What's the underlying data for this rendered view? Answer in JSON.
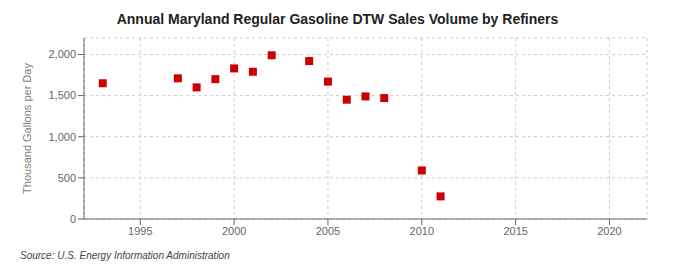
{
  "chart_data": {
    "type": "scatter",
    "title": "Annual Maryland Regular Gasoline DTW Sales Volume by Refiners",
    "ylabel": "Thousand Gallons per Day",
    "annotations": [
      "Source: U.S. Energy Information Administration"
    ],
    "x": [
      1993,
      1997,
      1998,
      1999,
      2000,
      2001,
      2002,
      2004,
      2005,
      2006,
      2007,
      2008,
      2010,
      2011
    ],
    "values": [
      1650,
      1710,
      1600,
      1700,
      1830,
      1790,
      1990,
      1920,
      1670,
      1450,
      1490,
      1470,
      590,
      275
    ],
    "color": "#cc0000",
    "marker": "square",
    "xlim": [
      1992,
      2022
    ],
    "ylim": [
      0,
      2200
    ],
    "xticks": [
      1995,
      2000,
      2005,
      2010,
      2015,
      2020
    ],
    "yticks": [
      0,
      500,
      {
        "value": 1000,
        "label": "1,000"
      },
      {
        "value": 1500,
        "label": "1,500"
      },
      {
        "value": 2000,
        "label": "2,000"
      }
    ],
    "grid": true
  }
}
